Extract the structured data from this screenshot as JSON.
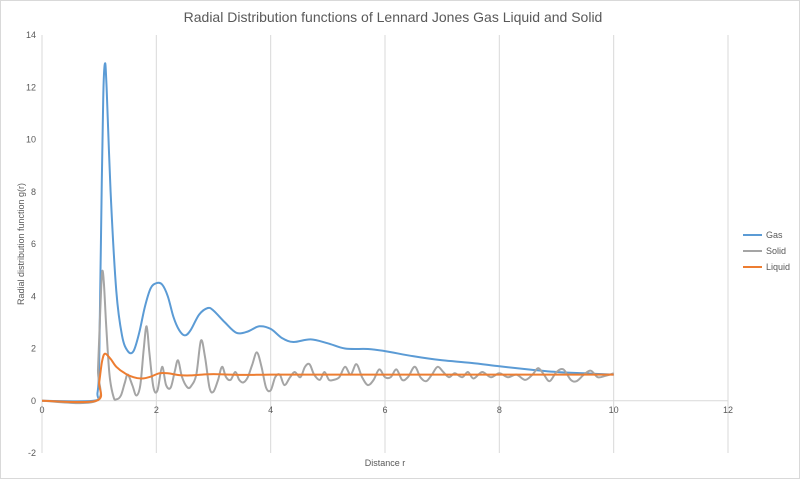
{
  "chart_data": {
    "type": "line",
    "title": "Radial Distribution functions of Lennard Jones Gas Liquid and Solid",
    "xlabel": "Distance r",
    "ylabel": "Radial distribution function g(r)",
    "xlim": [
      0,
      12
    ],
    "ylim": [
      -2,
      14
    ],
    "x_ticks": [
      "0",
      "2",
      "4",
      "6",
      "8",
      "10",
      "12"
    ],
    "y_ticks": [
      "-2",
      "0",
      "2",
      "4",
      "6",
      "8",
      "10",
      "12",
      "14"
    ],
    "grid": "vertical",
    "legend_position": "right",
    "series": [
      {
        "name": "Gas",
        "color": "#5b9bd5",
        "points": [
          [
            0,
            0
          ],
          [
            0.9,
            0
          ],
          [
            0.97,
            0.3
          ],
          [
            1.0,
            1.5
          ],
          [
            1.03,
            6.0
          ],
          [
            1.07,
            11.5
          ],
          [
            1.1,
            12.9
          ],
          [
            1.13,
            12.0
          ],
          [
            1.2,
            8.0
          ],
          [
            1.3,
            4.2
          ],
          [
            1.4,
            2.5
          ],
          [
            1.5,
            1.9
          ],
          [
            1.6,
            1.9
          ],
          [
            1.7,
            2.6
          ],
          [
            1.8,
            3.6
          ],
          [
            1.9,
            4.3
          ],
          [
            2.0,
            4.5
          ],
          [
            2.1,
            4.45
          ],
          [
            2.2,
            4.0
          ],
          [
            2.3,
            3.2
          ],
          [
            2.4,
            2.7
          ],
          [
            2.5,
            2.5
          ],
          [
            2.6,
            2.7
          ],
          [
            2.75,
            3.3
          ],
          [
            2.9,
            3.55
          ],
          [
            3.0,
            3.45
          ],
          [
            3.2,
            3.0
          ],
          [
            3.4,
            2.6
          ],
          [
            3.6,
            2.65
          ],
          [
            3.8,
            2.85
          ],
          [
            4.0,
            2.75
          ],
          [
            4.2,
            2.4
          ],
          [
            4.4,
            2.25
          ],
          [
            4.7,
            2.35
          ],
          [
            5.0,
            2.2
          ],
          [
            5.3,
            2.0
          ],
          [
            5.7,
            1.98
          ],
          [
            6.0,
            1.9
          ],
          [
            6.5,
            1.7
          ],
          [
            7.0,
            1.55
          ],
          [
            7.5,
            1.45
          ],
          [
            8.0,
            1.32
          ],
          [
            8.5,
            1.2
          ],
          [
            9.0,
            1.1
          ],
          [
            9.5,
            1.05
          ],
          [
            10.0,
            1.0
          ]
        ]
      },
      {
        "name": "Solid",
        "color": "#a5a5a5",
        "points": [
          [
            0,
            0
          ],
          [
            0.95,
            0
          ],
          [
            0.98,
            1.2
          ],
          [
            1.02,
            3.5
          ],
          [
            1.05,
            4.9
          ],
          [
            1.08,
            4.6
          ],
          [
            1.12,
            3.0
          ],
          [
            1.18,
            1.0
          ],
          [
            1.25,
            0.15
          ],
          [
            1.3,
            0.05
          ],
          [
            1.38,
            0.2
          ],
          [
            1.45,
            0.7
          ],
          [
            1.5,
            1.0
          ],
          [
            1.58,
            0.6
          ],
          [
            1.65,
            0.2
          ],
          [
            1.72,
            0.6
          ],
          [
            1.78,
            2.0
          ],
          [
            1.83,
            2.85
          ],
          [
            1.88,
            1.8
          ],
          [
            1.95,
            0.5
          ],
          [
            2.02,
            0.4
          ],
          [
            2.1,
            1.3
          ],
          [
            2.17,
            0.6
          ],
          [
            2.25,
            0.5
          ],
          [
            2.32,
            1.1
          ],
          [
            2.38,
            1.55
          ],
          [
            2.45,
            0.9
          ],
          [
            2.55,
            0.5
          ],
          [
            2.62,
            0.6
          ],
          [
            2.7,
            1.0
          ],
          [
            2.78,
            2.3
          ],
          [
            2.85,
            1.7
          ],
          [
            2.93,
            0.5
          ],
          [
            3.0,
            0.35
          ],
          [
            3.08,
            0.8
          ],
          [
            3.15,
            1.3
          ],
          [
            3.22,
            0.9
          ],
          [
            3.3,
            0.8
          ],
          [
            3.38,
            1.1
          ],
          [
            3.45,
            0.8
          ],
          [
            3.52,
            0.7
          ],
          [
            3.6,
            0.9
          ],
          [
            3.68,
            1.4
          ],
          [
            3.76,
            1.85
          ],
          [
            3.84,
            1.3
          ],
          [
            3.92,
            0.5
          ],
          [
            4.0,
            0.4
          ],
          [
            4.08,
            0.9
          ],
          [
            4.16,
            1.0
          ],
          [
            4.24,
            0.6
          ],
          [
            4.34,
            0.9
          ],
          [
            4.42,
            1.1
          ],
          [
            4.52,
            0.9
          ],
          [
            4.6,
            1.3
          ],
          [
            4.68,
            1.4
          ],
          [
            4.76,
            1.0
          ],
          [
            4.86,
            0.8
          ],
          [
            4.94,
            1.1
          ],
          [
            5.02,
            0.8
          ],
          [
            5.1,
            0.8
          ],
          [
            5.2,
            0.9
          ],
          [
            5.3,
            1.3
          ],
          [
            5.4,
            1.0
          ],
          [
            5.5,
            1.4
          ],
          [
            5.6,
            0.9
          ],
          [
            5.7,
            0.6
          ],
          [
            5.8,
            0.8
          ],
          [
            5.9,
            1.2
          ],
          [
            6.0,
            0.9
          ],
          [
            6.1,
            0.9
          ],
          [
            6.2,
            1.2
          ],
          [
            6.3,
            0.8
          ],
          [
            6.4,
            0.9
          ],
          [
            6.52,
            1.3
          ],
          [
            6.62,
            0.9
          ],
          [
            6.72,
            0.75
          ],
          [
            6.82,
            1.0
          ],
          [
            6.92,
            1.3
          ],
          [
            7.02,
            1.1
          ],
          [
            7.12,
            0.9
          ],
          [
            7.22,
            1.05
          ],
          [
            7.35,
            0.9
          ],
          [
            7.45,
            1.1
          ],
          [
            7.55,
            0.85
          ],
          [
            7.7,
            1.1
          ],
          [
            7.85,
            0.9
          ],
          [
            8.0,
            1.05
          ],
          [
            8.15,
            0.9
          ],
          [
            8.3,
            1.0
          ],
          [
            8.45,
            0.8
          ],
          [
            8.58,
            1.0
          ],
          [
            8.68,
            1.25
          ],
          [
            8.78,
            1.0
          ],
          [
            8.88,
            0.75
          ],
          [
            9.0,
            1.1
          ],
          [
            9.12,
            1.2
          ],
          [
            9.25,
            0.8
          ],
          [
            9.35,
            0.75
          ],
          [
            9.48,
            1.0
          ],
          [
            9.6,
            1.15
          ],
          [
            9.72,
            0.9
          ],
          [
            9.85,
            0.95
          ],
          [
            10.0,
            1.05
          ]
        ]
      },
      {
        "name": "Liquid",
        "color": "#ed7d31",
        "points": [
          [
            0,
            0
          ],
          [
            0.95,
            0
          ],
          [
            1.0,
            0.7
          ],
          [
            1.05,
            1.5
          ],
          [
            1.1,
            1.8
          ],
          [
            1.2,
            1.6
          ],
          [
            1.3,
            1.3
          ],
          [
            1.45,
            1.05
          ],
          [
            1.6,
            0.9
          ],
          [
            1.75,
            0.85
          ],
          [
            1.9,
            0.92
          ],
          [
            2.05,
            1.05
          ],
          [
            2.2,
            1.05
          ],
          [
            2.4,
            0.98
          ],
          [
            2.6,
            0.97
          ],
          [
            2.8,
            1.0
          ],
          [
            3.0,
            1.02
          ],
          [
            3.3,
            1.0
          ],
          [
            3.6,
            0.99
          ],
          [
            4.0,
            1.0
          ],
          [
            5.0,
            1.0
          ],
          [
            6.0,
            1.0
          ],
          [
            7.0,
            1.0
          ],
          [
            8.0,
            1.0
          ],
          [
            9.0,
            1.0
          ],
          [
            10.0,
            1.0
          ]
        ]
      }
    ]
  }
}
